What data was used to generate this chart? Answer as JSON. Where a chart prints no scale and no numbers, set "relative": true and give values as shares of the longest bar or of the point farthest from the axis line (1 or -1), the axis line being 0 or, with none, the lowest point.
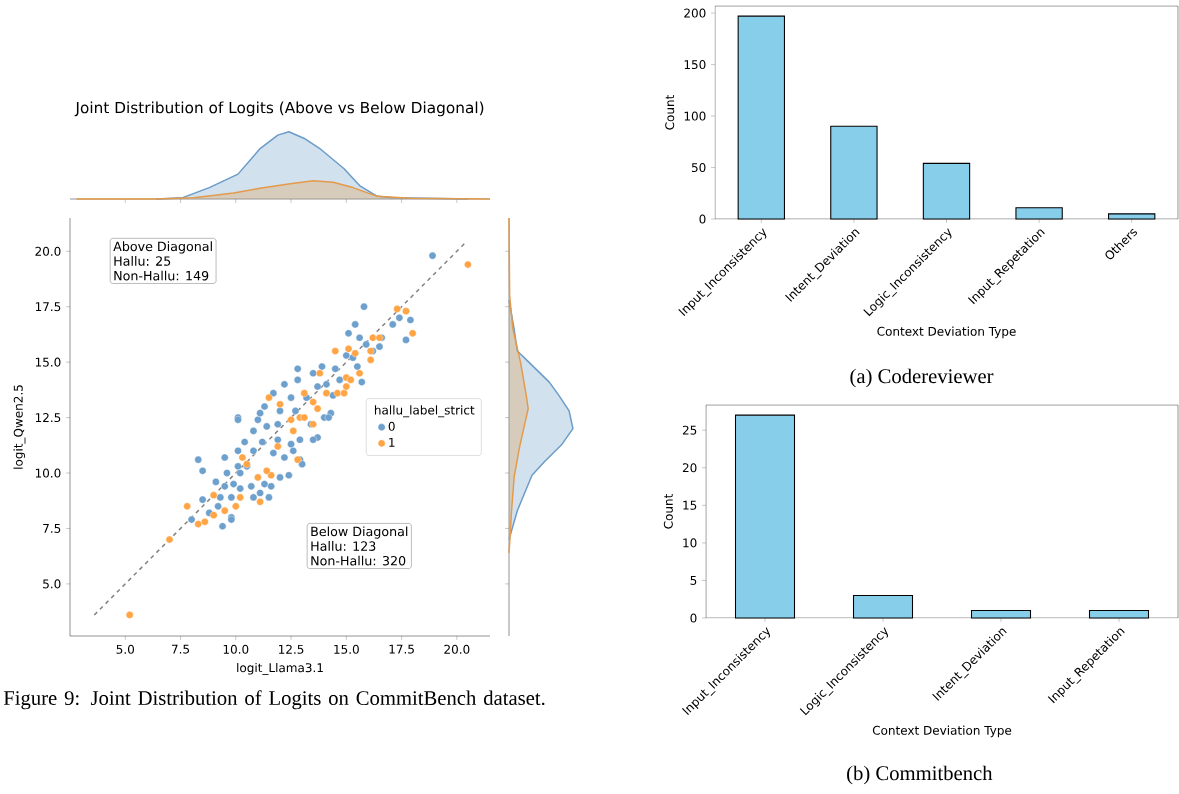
{
  "chart_data": [
    {
      "type": "area",
      "title": "Joint Distribution of Logits (Above vs Below Diagonal)",
      "relative": true,
      "xlim": [
        2.5,
        21.5
      ],
      "xticks": [
        5,
        7.5,
        10,
        12.5,
        15,
        17.5,
        20
      ],
      "tick_labels": false,
      "series": [
        {
          "color": "#6a9bc8",
          "x": [
            6.4,
            7.6,
            8.8,
            10.1,
            11.1,
            11.9,
            12.4,
            13.1,
            13.8,
            14.9,
            15.6,
            16.4,
            17.1,
            18.6,
            20.5
          ],
          "values": [
            0,
            0.02,
            0.17,
            0.37,
            0.75,
            0.95,
            1,
            0.9,
            0.75,
            0.45,
            0.2,
            0.04,
            0.02,
            0.01,
            0
          ]
        },
        {
          "color": "#e39a4a",
          "x": [
            2.8,
            6.4,
            8.1,
            9.9,
            11.1,
            12.3,
            13.5,
            14.4,
            15.3,
            16.4,
            17.9,
            21.5
          ],
          "values": [
            0,
            0,
            0.02,
            0.09,
            0.16,
            0.22,
            0.27,
            0.25,
            0.17,
            0.04,
            0.01,
            0
          ]
        }
      ]
    },
    {
      "type": "scatter",
      "xlabel": "logit_Llama3.1",
      "ylabel": "logit_Qwen2.5",
      "legend_title": "hallu_label_strict",
      "legend": "right",
      "marker": "circle",
      "xlim": [
        2.5,
        21.5
      ],
      "ylim": [
        2.65,
        21.5
      ],
      "xticks": [
        {
          "value": 5,
          "label": "5.0"
        },
        {
          "value": 7.5,
          "label": "7.5"
        },
        {
          "value": 10,
          "label": "10.0"
        },
        {
          "value": 12.5,
          "label": "12.5"
        },
        {
          "value": 15,
          "label": "15.0"
        },
        {
          "value": 17.5,
          "label": "17.5"
        },
        {
          "value": 20,
          "label": "20.0"
        }
      ],
      "yticks": [
        {
          "value": 5,
          "label": "5.0"
        },
        {
          "value": 7.5,
          "label": "7.5"
        },
        {
          "value": 10,
          "label": "10.0"
        },
        {
          "value": 12.5,
          "label": "12.5"
        },
        {
          "value": 15,
          "label": "15.0"
        },
        {
          "value": 17.5,
          "label": "17.5"
        },
        {
          "value": 20,
          "label": "20.0"
        }
      ],
      "annotations": [
        "Above Diagonal",
        "Hallu: 25",
        "Non-Hallu: 149",
        "Below Diagonal",
        "Hallu: 123",
        "Non-Hallu: 320",
        "Figure 9: Joint Distribution of Logits on CommitBench dataset."
      ],
      "series": [
        {
          "name": "0",
          "color": "#6ea0cd",
          "x": [
            18.9,
            15.8,
            17.9,
            17.4,
            17.1,
            17.7,
            16.5,
            16.6,
            15.4,
            15.1,
            15.6,
            15.9,
            16.2,
            15.0,
            15.5,
            15.7,
            14.5,
            13.9,
            13.5,
            12.8,
            12.8,
            12.2,
            11.7,
            11.3,
            10.1,
            10.1,
            11.0,
            10.8,
            11.4,
            11.9,
            12.5,
            12.9,
            13.4,
            14.0,
            14.3,
            14.4,
            13.7,
            13.2,
            12.5,
            12.0,
            11.2,
            10.4,
            10.1,
            10.8,
            11.7,
            12.2,
            12.6,
            12.9,
            13.7,
            10.5,
            10.1,
            9.6,
            9.5,
            8.3,
            8.5,
            9.1,
            9.5,
            9.9,
            10.2,
            10.7,
            11.3,
            11.6,
            12.0,
            12.4,
            11.1,
            11.5,
            10.8,
            9.8,
            9.3,
            8.5,
            8.8,
            9.2,
            9.8,
            9.8,
            9.4,
            8.0,
            10.2,
            11.9,
            11.1,
            12.7,
            13.5,
            13.0,
            14.2,
            14.7,
            14.1,
            15.3
          ],
          "values": [
            19.8,
            17.5,
            16.9,
            17.0,
            16.7,
            16.0,
            15.7,
            16.1,
            16.7,
            16.3,
            16.1,
            15.8,
            15.5,
            15.3,
            14.8,
            14.1,
            14.7,
            14.8,
            14.5,
            14.7,
            14.2,
            14.0,
            13.6,
            13.0,
            12.5,
            12.4,
            12.4,
            11.9,
            12.1,
            11.5,
            11.3,
            11.5,
            12.2,
            12.5,
            12.7,
            13.5,
            13.9,
            13.4,
            13.4,
            12.8,
            11.4,
            11.4,
            11.0,
            11.0,
            10.9,
            10.7,
            11.0,
            10.6,
            11.6,
            10.3,
            10.3,
            10.0,
            10.7,
            10.6,
            10.1,
            9.6,
            9.4,
            9.5,
            9.3,
            9.4,
            9.5,
            9.4,
            9.8,
            9.9,
            9.1,
            8.9,
            8.9,
            8.9,
            8.9,
            8.8,
            8.2,
            8.5,
            8.0,
            7.9,
            7.6,
            7.9,
            10.0,
            12.2,
            12.7,
            12.8,
            11.5,
            10.4,
            12.5,
            14.2,
            14.0,
            15.2
          ]
        },
        {
          "name": "1",
          "color": "#ffa546",
          "x": [
            5.2,
            7.0,
            7.8,
            8.3,
            8.6,
            9.0,
            9.0,
            9.5,
            10.0,
            10.2,
            11.1,
            10.3,
            10.5,
            11.0,
            11.6,
            11.5,
            12.0,
            12.5,
            12.6,
            12.9,
            13.1,
            12.8,
            13.1,
            13.5,
            13.7,
            14.1,
            14.6,
            14.9,
            15.0,
            15.1,
            14.5,
            15.4,
            15.6,
            16.1,
            16.1,
            16.2,
            16.5,
            17.3,
            17.7,
            18.0,
            20.5,
            13.8,
            15.0,
            15.2,
            11.9,
            11.4,
            13.5
          ],
          "values": [
            3.6,
            7.0,
            8.5,
            7.7,
            7.8,
            8.1,
            9.0,
            8.3,
            8.5,
            8.9,
            8.7,
            10.7,
            10.4,
            9.8,
            9.9,
            13.4,
            13.1,
            12.4,
            11.9,
            12.5,
            12.5,
            10.6,
            13.6,
            13.2,
            12.9,
            13.6,
            13.6,
            13.6,
            13.9,
            15.6,
            15.5,
            15.4,
            14.5,
            15.1,
            15.5,
            16.1,
            16.1,
            17.4,
            17.3,
            16.3,
            19.4,
            14.5,
            14.3,
            14.2,
            11.2,
            10.1,
            12.2
          ]
        },
        {
          "type": "line",
          "color": "#808080",
          "line_style": "dashed",
          "marker": "none",
          "x": [
            3.6,
            20.4
          ],
          "values": [
            3.6,
            20.4
          ]
        }
      ]
    },
    {
      "type": "area",
      "orientation": "horizontal",
      "relative": true,
      "ylim": [
        2.65,
        21.5
      ],
      "yticks": [
        5,
        7.5,
        10,
        12.5,
        15,
        17.5,
        20
      ],
      "tick_labels": false,
      "series": [
        {
          "color": "#6a9bc8",
          "x": [
            17.8,
            16.5,
            15.5,
            15.0,
            14.1,
            13.5,
            12.8,
            12.0,
            11.3,
            10.5,
            9.9,
            9.0,
            8.3,
            7.5,
            7.0
          ],
          "values": [
            0,
            0.08,
            0.13,
            0.31,
            0.63,
            0.78,
            0.94,
            1,
            0.83,
            0.55,
            0.36,
            0.23,
            0.13,
            0.05,
            0
          ]
        },
        {
          "color": "#e39a4a",
          "x": [
            21.5,
            18.0,
            16.5,
            15.0,
            13.5,
            12.9,
            12.0,
            11.1,
            9.8,
            8.3,
            6.8,
            6.4
          ],
          "values": [
            0,
            0.01,
            0.06,
            0.18,
            0.27,
            0.3,
            0.23,
            0.16,
            0.08,
            0.04,
            0.01,
            0
          ]
        }
      ]
    },
    {
      "type": "bar",
      "xlabel": "Context Deviation Type",
      "ylabel": "Count",
      "categories": [
        "Input_Inconsistency",
        "Intent_Deviation",
        "Logic_Inconsistency",
        "Input_Repetation",
        "Others"
      ],
      "values": [
        197,
        90,
        54,
        11,
        5
      ],
      "color": "#87ceeb",
      "ylim": [
        0,
        206.85
      ],
      "yticks": [
        0,
        50,
        100,
        150,
        200
      ],
      "annotations": [
        "(a) Codereviewer"
      ]
    },
    {
      "type": "bar",
      "xlabel": "Context Deviation Type",
      "ylabel": "Count",
      "categories": [
        "Input_Inconsistency",
        "Logic_Inconsistency",
        "Intent_Deviation",
        "Input_Repetation"
      ],
      "values": [
        27,
        3,
        1,
        1
      ],
      "color": "#87ceeb",
      "ylim": [
        0,
        28.35
      ],
      "yticks": [
        0,
        5,
        10,
        15,
        20,
        25
      ],
      "annotations": [
        "(b) Commitbench"
      ]
    }
  ]
}
